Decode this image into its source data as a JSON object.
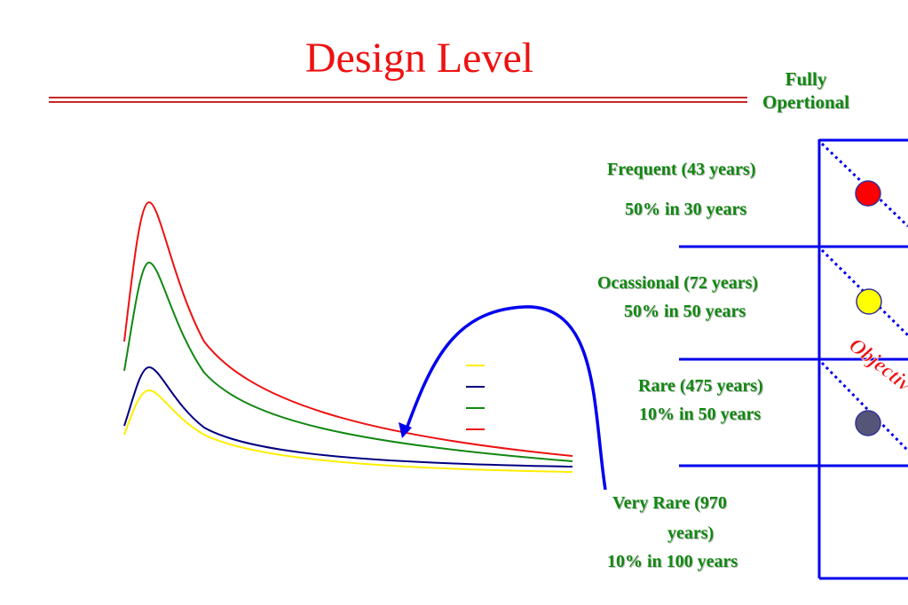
{
  "title": "Design Level",
  "column_header": [
    "Fully",
    "Opertional"
  ],
  "levels": [
    {
      "name": "Frequent (43 years)",
      "probability": "50% in 30 years",
      "marker_color": "#ff0000"
    },
    {
      "name": "Ocassional (72 years)",
      "probability": "50% in 50 years",
      "marker_color": "#ffff00"
    },
    {
      "name": "Rare (475 years)",
      "probability": "10% in 50 years",
      "marker_color": "#555577"
    },
    {
      "name_line1": "Very  Rare (970",
      "name_line2": "years)",
      "probability": "10% in 100 years"
    }
  ],
  "objective_label": "Objectiv",
  "curve_colors": {
    "red": "#ee1111",
    "green": "#118811",
    "navy": "#000080",
    "yellow": "#ffee00"
  }
}
